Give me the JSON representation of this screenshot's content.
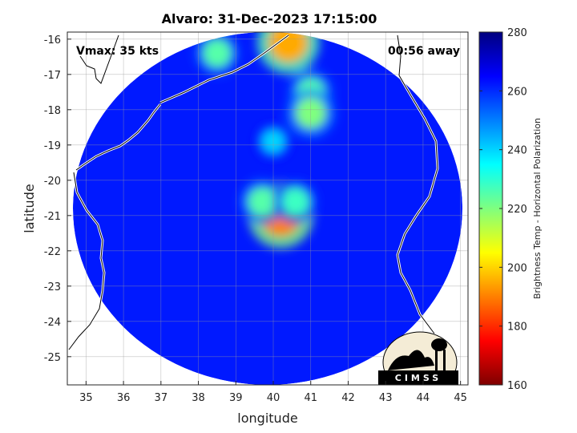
{
  "chart_data": {
    "type": "heatmap",
    "title": "Alvaro: 31-Dec-2023 17:15:00",
    "annotations": {
      "vmax": "Vmax: 35 kts",
      "time_offset": "00:56 away"
    },
    "xlabel": "longitude",
    "ylabel": "latitude",
    "xlim": [
      34.5,
      45.2
    ],
    "ylim": [
      -25.8,
      -15.8
    ],
    "xticks": [
      35,
      36,
      37,
      38,
      39,
      40,
      41,
      42,
      43,
      44,
      45
    ],
    "yticks": [
      -16,
      -17,
      -18,
      -19,
      -20,
      -21,
      -22,
      -23,
      -24,
      -25
    ],
    "grid": true,
    "colorbar": {
      "label": "Brightness Temp - Horizontal Polarization",
      "min": 160,
      "max": 280,
      "ticks": [
        160,
        180,
        200,
        220,
        240,
        260,
        280
      ],
      "colormap": [
        "#7f0000",
        "#ff0000",
        "#ff7f00",
        "#ffff00",
        "#7fff7f",
        "#00ffff",
        "#007fff",
        "#0000ff",
        "#00007f"
      ]
    },
    "swath": {
      "center": [
        39.85,
        -20.8
      ],
      "radius_lon": 5.2,
      "radius_lat": 5.0,
      "background_value": 262
    },
    "features": [
      {
        "lon": 40.2,
        "lat": -21.0,
        "value": 190
      },
      {
        "lon": 39.7,
        "lat": -20.6,
        "value": 225
      },
      {
        "lon": 40.6,
        "lat": -20.6,
        "value": 228
      },
      {
        "lon": 40.4,
        "lat": -16.1,
        "value": 195
      },
      {
        "lon": 38.5,
        "lat": -16.4,
        "value": 225
      },
      {
        "lon": 41.0,
        "lat": -17.5,
        "value": 225
      },
      {
        "lon": 41.0,
        "lat": -18.1,
        "value": 220
      },
      {
        "lon": 40.0,
        "lat": -18.9,
        "value": 240
      }
    ],
    "logo": "CIMSS"
  }
}
